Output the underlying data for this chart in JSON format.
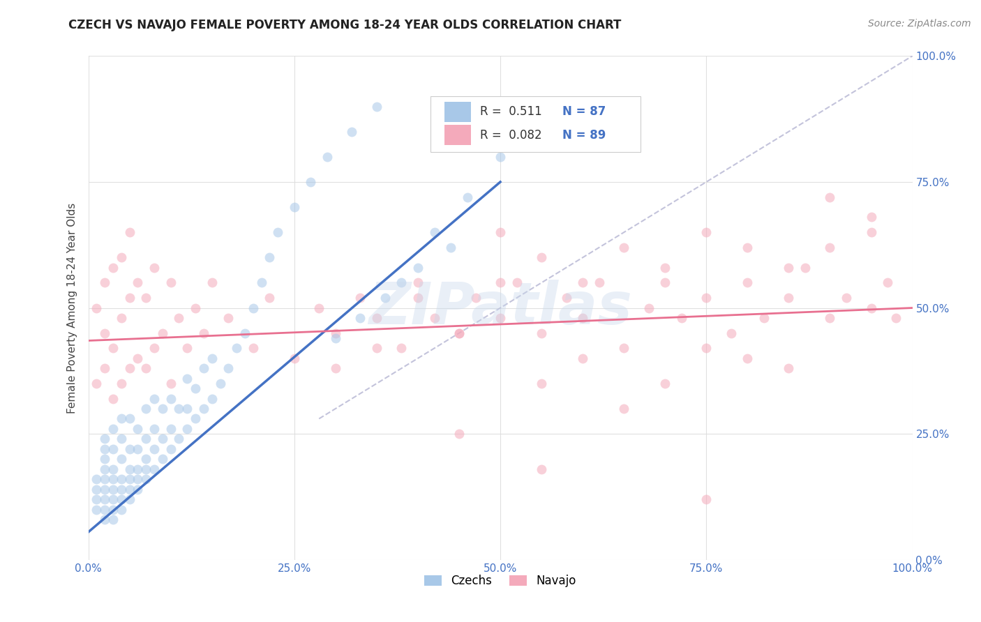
{
  "title": "CZECH VS NAVAJO FEMALE POVERTY AMONG 18-24 YEAR OLDS CORRELATION CHART",
  "source": "Source: ZipAtlas.com",
  "ylabel": "Female Poverty Among 18-24 Year Olds",
  "xlim": [
    0,
    1
  ],
  "ylim": [
    0,
    1
  ],
  "xticks": [
    0,
    0.25,
    0.5,
    0.75,
    1.0
  ],
  "yticks": [
    0,
    0.25,
    0.5,
    0.75,
    1.0
  ],
  "xticklabels": [
    "0.0%",
    "25.0%",
    "50.0%",
    "75.0%",
    "100.0%"
  ],
  "yticklabels": [
    "0.0%",
    "25.0%",
    "50.0%",
    "75.0%",
    "100.0%"
  ],
  "czech_color": "#A8C8E8",
  "navajo_color": "#F4AABB",
  "czech_R": 0.511,
  "czech_N": 87,
  "navajo_R": 0.082,
  "navajo_N": 89,
  "czech_line_color": "#4472C4",
  "navajo_line_color": "#E87090",
  "ref_line_color": "#AAAACC",
  "watermark_text": "ZIPatlas",
  "background_color": "#FFFFFF",
  "grid_color": "#DDDDDD",
  "tick_color": "#4472C4",
  "legend_R_color": "#333333",
  "legend_N_color": "#4472C4",
  "czech_scatter_x": [
    0.01,
    0.01,
    0.01,
    0.01,
    0.02,
    0.02,
    0.02,
    0.02,
    0.02,
    0.02,
    0.02,
    0.02,
    0.02,
    0.03,
    0.03,
    0.03,
    0.03,
    0.03,
    0.03,
    0.03,
    0.03,
    0.04,
    0.04,
    0.04,
    0.04,
    0.04,
    0.04,
    0.04,
    0.05,
    0.05,
    0.05,
    0.05,
    0.05,
    0.05,
    0.06,
    0.06,
    0.06,
    0.06,
    0.06,
    0.07,
    0.07,
    0.07,
    0.07,
    0.07,
    0.08,
    0.08,
    0.08,
    0.08,
    0.09,
    0.09,
    0.09,
    0.1,
    0.1,
    0.1,
    0.11,
    0.11,
    0.12,
    0.12,
    0.12,
    0.13,
    0.13,
    0.14,
    0.14,
    0.15,
    0.15,
    0.16,
    0.17,
    0.18,
    0.19,
    0.2,
    0.21,
    0.22,
    0.23,
    0.25,
    0.27,
    0.29,
    0.32,
    0.35,
    0.38,
    0.42,
    0.46,
    0.5,
    0.3,
    0.33,
    0.36,
    0.4,
    0.44
  ],
  "czech_scatter_y": [
    0.1,
    0.12,
    0.14,
    0.16,
    0.08,
    0.1,
    0.12,
    0.14,
    0.16,
    0.18,
    0.2,
    0.22,
    0.24,
    0.08,
    0.1,
    0.12,
    0.14,
    0.16,
    0.18,
    0.22,
    0.26,
    0.1,
    0.12,
    0.14,
    0.16,
    0.2,
    0.24,
    0.28,
    0.12,
    0.14,
    0.16,
    0.18,
    0.22,
    0.28,
    0.14,
    0.16,
    0.18,
    0.22,
    0.26,
    0.16,
    0.18,
    0.2,
    0.24,
    0.3,
    0.18,
    0.22,
    0.26,
    0.32,
    0.2,
    0.24,
    0.3,
    0.22,
    0.26,
    0.32,
    0.24,
    0.3,
    0.26,
    0.3,
    0.36,
    0.28,
    0.34,
    0.3,
    0.38,
    0.32,
    0.4,
    0.35,
    0.38,
    0.42,
    0.45,
    0.5,
    0.55,
    0.6,
    0.65,
    0.7,
    0.75,
    0.8,
    0.85,
    0.9,
    0.55,
    0.65,
    0.72,
    0.8,
    0.44,
    0.48,
    0.52,
    0.58,
    0.62
  ],
  "navajo_scatter_x": [
    0.01,
    0.01,
    0.02,
    0.02,
    0.02,
    0.03,
    0.03,
    0.03,
    0.04,
    0.04,
    0.04,
    0.05,
    0.05,
    0.05,
    0.06,
    0.06,
    0.07,
    0.07,
    0.08,
    0.08,
    0.09,
    0.1,
    0.1,
    0.11,
    0.12,
    0.13,
    0.14,
    0.15,
    0.17,
    0.2,
    0.22,
    0.25,
    0.28,
    0.3,
    0.33,
    0.35,
    0.38,
    0.4,
    0.42,
    0.45,
    0.47,
    0.5,
    0.52,
    0.55,
    0.58,
    0.6,
    0.62,
    0.65,
    0.68,
    0.7,
    0.72,
    0.75,
    0.78,
    0.8,
    0.82,
    0.85,
    0.87,
    0.9,
    0.92,
    0.95,
    0.97,
    0.98,
    0.5,
    0.55,
    0.6,
    0.65,
    0.7,
    0.75,
    0.8,
    0.85,
    0.9,
    0.95,
    0.4,
    0.45,
    0.5,
    0.3,
    0.35,
    0.55,
    0.6,
    0.7,
    0.75,
    0.8,
    0.85,
    0.9,
    0.95,
    0.65,
    0.45,
    0.55,
    0.75
  ],
  "navajo_scatter_y": [
    0.35,
    0.5,
    0.38,
    0.45,
    0.55,
    0.32,
    0.42,
    0.58,
    0.35,
    0.48,
    0.6,
    0.38,
    0.52,
    0.65,
    0.4,
    0.55,
    0.38,
    0.52,
    0.42,
    0.58,
    0.45,
    0.35,
    0.55,
    0.48,
    0.42,
    0.5,
    0.45,
    0.55,
    0.48,
    0.42,
    0.52,
    0.4,
    0.5,
    0.45,
    0.52,
    0.48,
    0.42,
    0.55,
    0.48,
    0.45,
    0.52,
    0.48,
    0.55,
    0.45,
    0.52,
    0.48,
    0.55,
    0.42,
    0.5,
    0.55,
    0.48,
    0.52,
    0.45,
    0.55,
    0.48,
    0.52,
    0.58,
    0.48,
    0.52,
    0.5,
    0.55,
    0.48,
    0.65,
    0.6,
    0.55,
    0.62,
    0.58,
    0.65,
    0.62,
    0.58,
    0.62,
    0.65,
    0.52,
    0.45,
    0.55,
    0.38,
    0.42,
    0.35,
    0.4,
    0.35,
    0.42,
    0.4,
    0.38,
    0.72,
    0.68,
    0.3,
    0.25,
    0.18,
    0.12
  ],
  "czech_line_x": [
    0.0,
    0.5
  ],
  "czech_line_y": [
    0.055,
    0.75
  ],
  "navajo_line_x": [
    0.0,
    1.0
  ],
  "navajo_line_y": [
    0.435,
    0.5
  ],
  "ref_line_x": [
    0.28,
    1.0
  ],
  "ref_line_y": [
    0.28,
    1.0
  ]
}
